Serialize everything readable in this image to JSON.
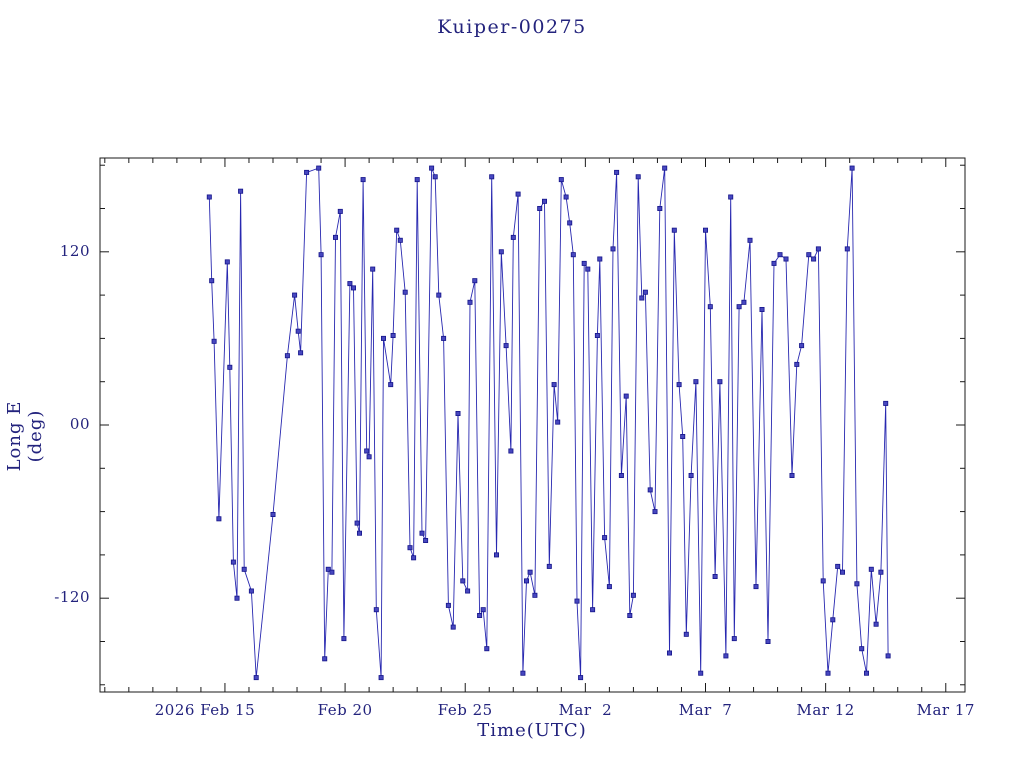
{
  "chart_data": {
    "type": "line",
    "title": "Kuiper-00275",
    "xlabel": "Time(UTC)",
    "ylabel": "Long E (deg)",
    "xlim": [
      -0.2,
      35.8
    ],
    "ylim": [
      -185,
      185
    ],
    "x_unit": "days, 0 = first visible day (axis labeled by calendar date)",
    "x_minor_step": 1,
    "y_minor_step": 30,
    "x_ticks": [
      {
        "t": 5,
        "label": "2026 Feb 15",
        "dx": -20
      },
      {
        "t": 10,
        "label": "Feb 20",
        "dx": 0
      },
      {
        "t": 15,
        "label": "Feb 25",
        "dx": 0
      },
      {
        "t": 20,
        "label": "Mar  2",
        "dx": 0
      },
      {
        "t": 25,
        "label": "Mar  7",
        "dx": 0
      },
      {
        "t": 30,
        "label": "Mar 12",
        "dx": 0
      },
      {
        "t": 35,
        "label": "Mar 17",
        "dx": 0
      }
    ],
    "y_ticks": [
      {
        "v": 120,
        "label": "120"
      },
      {
        "v": 0,
        "label": "00"
      },
      {
        "v": -120,
        "label": "-120"
      }
    ],
    "legend": "none",
    "grid": false,
    "colors": {
      "background": "#ffffff",
      "line": "#2828b0",
      "marker_fill": "#4747bf",
      "marker_stroke": "#15158a",
      "frame": "#1a1a1a",
      "text": "#23237d"
    },
    "points": [
      [
        4.35,
        158
      ],
      [
        4.45,
        100
      ],
      [
        4.55,
        58
      ],
      [
        4.75,
        -65
      ],
      [
        5.1,
        113
      ],
      [
        5.2,
        40
      ],
      [
        5.35,
        -95
      ],
      [
        5.5,
        -120
      ],
      [
        5.65,
        162
      ],
      [
        5.8,
        -100
      ],
      [
        6.1,
        -115
      ],
      [
        6.3,
        -175
      ],
      [
        7.0,
        -62
      ],
      [
        7.6,
        48
      ],
      [
        7.9,
        90
      ],
      [
        8.05,
        65
      ],
      [
        8.15,
        50
      ],
      [
        8.4,
        175
      ],
      [
        8.9,
        178
      ],
      [
        9.0,
        118
      ],
      [
        9.15,
        -162
      ],
      [
        9.3,
        -100
      ],
      [
        9.45,
        -102
      ],
      [
        9.6,
        130
      ],
      [
        9.8,
        148
      ],
      [
        9.95,
        -148
      ],
      [
        10.2,
        98
      ],
      [
        10.35,
        95
      ],
      [
        10.5,
        -68
      ],
      [
        10.6,
        -75
      ],
      [
        10.75,
        170
      ],
      [
        10.9,
        -18
      ],
      [
        11.0,
        -22
      ],
      [
        11.15,
        108
      ],
      [
        11.3,
        -128
      ],
      [
        11.5,
        -175
      ],
      [
        11.6,
        60
      ],
      [
        11.9,
        28
      ],
      [
        12.0,
        62
      ],
      [
        12.15,
        135
      ],
      [
        12.3,
        128
      ],
      [
        12.5,
        92
      ],
      [
        12.7,
        -85
      ],
      [
        12.85,
        -92
      ],
      [
        13.0,
        170
      ],
      [
        13.2,
        -75
      ],
      [
        13.35,
        -80
      ],
      [
        13.6,
        178
      ],
      [
        13.75,
        172
      ],
      [
        13.9,
        90
      ],
      [
        14.1,
        60
      ],
      [
        14.3,
        -125
      ],
      [
        14.5,
        -140
      ],
      [
        14.7,
        8
      ],
      [
        14.9,
        -108
      ],
      [
        15.1,
        -115
      ],
      [
        15.2,
        85
      ],
      [
        15.4,
        100
      ],
      [
        15.6,
        -132
      ],
      [
        15.75,
        -128
      ],
      [
        15.9,
        -155
      ],
      [
        16.1,
        172
      ],
      [
        16.3,
        -90
      ],
      [
        16.5,
        120
      ],
      [
        16.7,
        55
      ],
      [
        16.9,
        -18
      ],
      [
        17.0,
        130
      ],
      [
        17.2,
        160
      ],
      [
        17.4,
        -172
      ],
      [
        17.55,
        -108
      ],
      [
        17.7,
        -102
      ],
      [
        17.9,
        -118
      ],
      [
        18.1,
        150
      ],
      [
        18.3,
        155
      ],
      [
        18.5,
        -98
      ],
      [
        18.7,
        28
      ],
      [
        18.85,
        2
      ],
      [
        19.0,
        170
      ],
      [
        19.2,
        158
      ],
      [
        19.35,
        140
      ],
      [
        19.5,
        118
      ],
      [
        19.65,
        -122
      ],
      [
        19.8,
        -175
      ],
      [
        19.95,
        112
      ],
      [
        20.1,
        108
      ],
      [
        20.3,
        -128
      ],
      [
        20.5,
        62
      ],
      [
        20.6,
        115
      ],
      [
        20.8,
        -78
      ],
      [
        21.0,
        -112
      ],
      [
        21.15,
        122
      ],
      [
        21.3,
        175
      ],
      [
        21.5,
        -35
      ],
      [
        21.7,
        20
      ],
      [
        21.85,
        -132
      ],
      [
        22.0,
        -118
      ],
      [
        22.2,
        172
      ],
      [
        22.35,
        88
      ],
      [
        22.5,
        92
      ],
      [
        22.7,
        -45
      ],
      [
        22.9,
        -60
      ],
      [
        23.1,
        150
      ],
      [
        23.3,
        178
      ],
      [
        23.5,
        -158
      ],
      [
        23.7,
        135
      ],
      [
        23.9,
        28
      ],
      [
        24.05,
        -8
      ],
      [
        24.2,
        -145
      ],
      [
        24.4,
        -35
      ],
      [
        24.6,
        30
      ],
      [
        24.8,
        -172
      ],
      [
        25.0,
        135
      ],
      [
        25.2,
        82
      ],
      [
        25.4,
        -105
      ],
      [
        25.6,
        30
      ],
      [
        25.85,
        -160
      ],
      [
        26.05,
        158
      ],
      [
        26.2,
        -148
      ],
      [
        26.4,
        82
      ],
      [
        26.6,
        85
      ],
      [
        26.85,
        128
      ],
      [
        27.1,
        -112
      ],
      [
        27.35,
        80
      ],
      [
        27.6,
        -150
      ],
      [
        27.85,
        112
      ],
      [
        28.1,
        118
      ],
      [
        28.35,
        115
      ],
      [
        28.6,
        -35
      ],
      [
        28.8,
        42
      ],
      [
        29.0,
        55
      ],
      [
        29.3,
        118
      ],
      [
        29.5,
        115
      ],
      [
        29.7,
        122
      ],
      [
        29.9,
        -108
      ],
      [
        30.1,
        -172
      ],
      [
        30.3,
        -135
      ],
      [
        30.5,
        -98
      ],
      [
        30.7,
        -102
      ],
      [
        30.9,
        122
      ],
      [
        31.1,
        178
      ],
      [
        31.3,
        -110
      ],
      [
        31.5,
        -155
      ],
      [
        31.7,
        -172
      ],
      [
        31.9,
        -100
      ],
      [
        32.1,
        -138
      ],
      [
        32.3,
        -102
      ],
      [
        32.5,
        15
      ],
      [
        32.6,
        -160
      ]
    ]
  }
}
